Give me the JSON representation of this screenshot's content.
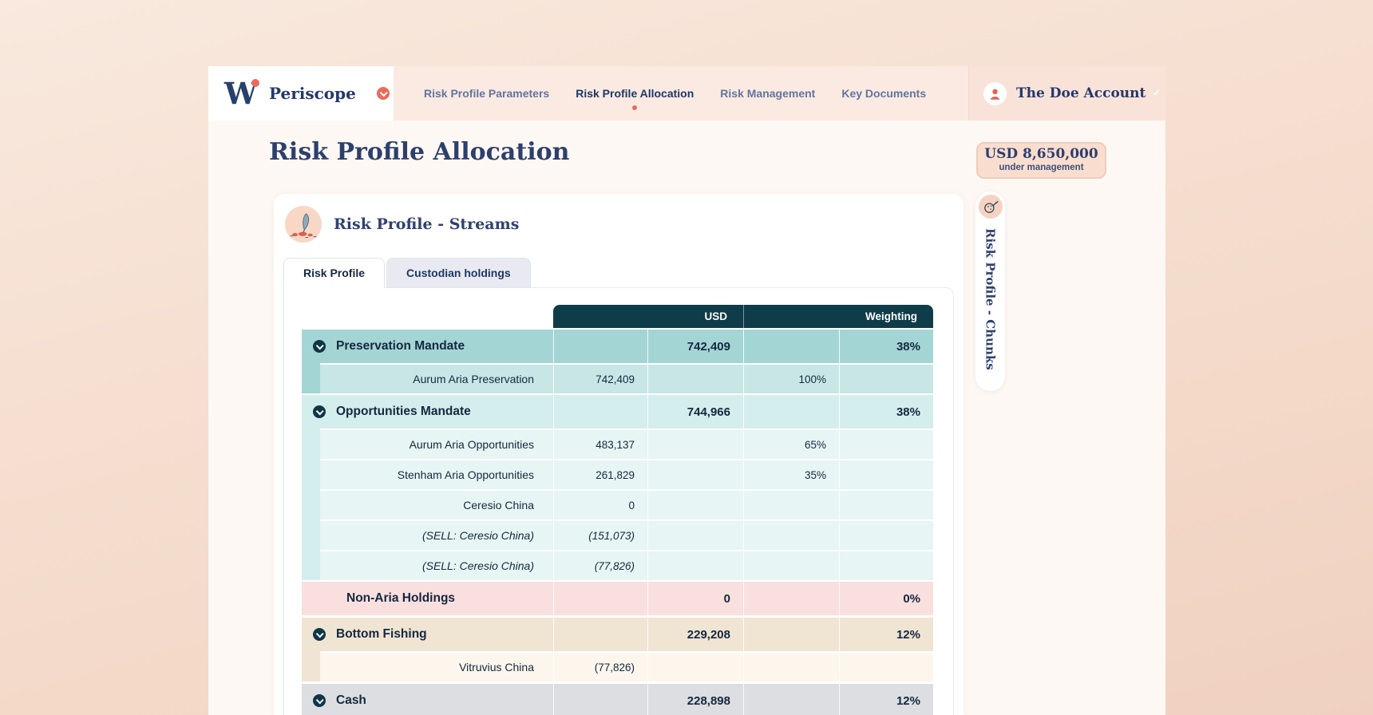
{
  "brand": {
    "mark": "W",
    "name": "Periscope"
  },
  "nav": {
    "items": [
      {
        "label": "Risk Profile Parameters",
        "active": false
      },
      {
        "label": "Risk Profile Allocation",
        "active": true
      },
      {
        "label": "Risk Management",
        "active": false
      },
      {
        "label": "Key Documents",
        "active": false
      }
    ]
  },
  "account": {
    "name": "The Doe Account"
  },
  "aum": {
    "amount": "USD 8,650,000",
    "caption": "under management"
  },
  "page_title": "Risk Profile Allocation",
  "stream_card": {
    "heading": "Risk Profile - Streams",
    "tabs": [
      {
        "label": "Risk Profile",
        "active": true
      },
      {
        "label": "Custodian holdings",
        "active": false
      }
    ]
  },
  "side_tab": {
    "label": "Risk Profile - Chunks"
  },
  "table": {
    "col_headers": [
      {
        "label": "USD"
      },
      {
        "label": "Weighting"
      }
    ],
    "rows": [
      {
        "group": 1,
        "kind": "parent",
        "theme": "teal1",
        "chevron": true,
        "italic": false,
        "name": "Preservation Mandate",
        "usd": "742,409",
        "weight": "38%"
      },
      {
        "group": 1,
        "kind": "child",
        "theme": "teal1",
        "chevron": false,
        "italic": false,
        "name": "Aurum Aria Preservation",
        "usd": "742,409",
        "weight": "100%"
      },
      {
        "group": 2,
        "kind": "parent",
        "theme": "teal2",
        "chevron": true,
        "italic": false,
        "name": "Opportunities Mandate",
        "usd": "744,966",
        "weight": "38%"
      },
      {
        "group": 2,
        "kind": "child",
        "theme": "teal2",
        "chevron": false,
        "italic": false,
        "name": "Aurum Aria Opportunities",
        "usd": "483,137",
        "weight": "65%"
      },
      {
        "group": 2,
        "kind": "child",
        "theme": "teal2",
        "chevron": false,
        "italic": false,
        "name": "Stenham Aria Opportunities",
        "usd": "261,829",
        "weight": "35%"
      },
      {
        "group": 2,
        "kind": "child",
        "theme": "teal2",
        "chevron": false,
        "italic": false,
        "name": "Ceresio China",
        "usd": "0",
        "weight": ""
      },
      {
        "group": 2,
        "kind": "child",
        "theme": "teal2",
        "chevron": false,
        "italic": true,
        "name": "(SELL: Ceresio China)",
        "usd": "(151,073)",
        "weight": ""
      },
      {
        "group": 2,
        "kind": "child",
        "theme": "teal2",
        "chevron": false,
        "italic": true,
        "name": "(SELL: Ceresio China)",
        "usd": "(77,826)",
        "weight": ""
      },
      {
        "group": 3,
        "kind": "parent",
        "theme": "pink",
        "chevron": false,
        "italic": false,
        "name": "Non-Aria Holdings",
        "usd": "0",
        "weight": "0%"
      },
      {
        "group": 4,
        "kind": "parent",
        "theme": "beige",
        "chevron": true,
        "italic": false,
        "name": "Bottom Fishing",
        "usd": "229,208",
        "weight": "12%"
      },
      {
        "group": 4,
        "kind": "child",
        "theme": "beige",
        "chevron": false,
        "italic": false,
        "name": "Vitruvius China",
        "usd": "(77,826)",
        "weight": ""
      },
      {
        "group": 5,
        "kind": "parent",
        "theme": "gray",
        "chevron": true,
        "italic": false,
        "name": "Cash",
        "usd": "228,898",
        "weight": "12%"
      }
    ]
  },
  "colors": {
    "coral_accent": "#ec6a5a",
    "navy_brand": "#24386b",
    "table_header_teal": "#0e3d49",
    "preservation_teal": "#a4d5d5",
    "opportunities_teal": "#d4eded",
    "non_aria_pink": "#fadfdf",
    "bottom_fishing_beige": "#f0e4d3",
    "cash_gray": "#dcdee1",
    "badge_bg": "#f9ded0"
  }
}
